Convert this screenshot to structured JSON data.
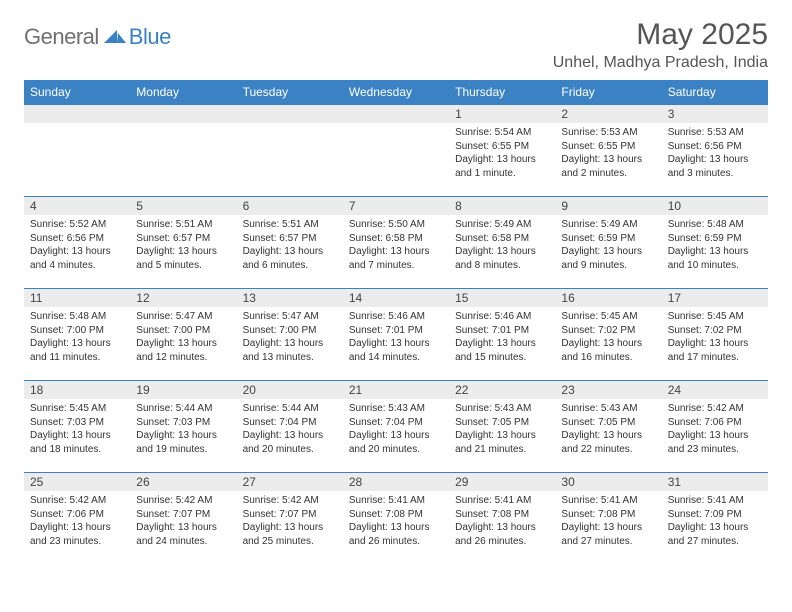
{
  "logo": {
    "general": "General",
    "blue": "Blue",
    "icon_color": "#3b82c4"
  },
  "title": "May 2025",
  "location": "Unhel, Madhya Pradesh, India",
  "colors": {
    "header_bg": "#3b82c4",
    "header_text": "#ffffff",
    "daynum_bg": "#ececec",
    "border": "#3b82c4",
    "text": "#333333"
  },
  "day_headers": [
    "Sunday",
    "Monday",
    "Tuesday",
    "Wednesday",
    "Thursday",
    "Friday",
    "Saturday"
  ],
  "weeks": [
    [
      {
        "n": "",
        "sr": "",
        "ss": "",
        "dl": ""
      },
      {
        "n": "",
        "sr": "",
        "ss": "",
        "dl": ""
      },
      {
        "n": "",
        "sr": "",
        "ss": "",
        "dl": ""
      },
      {
        "n": "",
        "sr": "",
        "ss": "",
        "dl": ""
      },
      {
        "n": "1",
        "sr": "Sunrise: 5:54 AM",
        "ss": "Sunset: 6:55 PM",
        "dl": "Daylight: 13 hours and 1 minute."
      },
      {
        "n": "2",
        "sr": "Sunrise: 5:53 AM",
        "ss": "Sunset: 6:55 PM",
        "dl": "Daylight: 13 hours and 2 minutes."
      },
      {
        "n": "3",
        "sr": "Sunrise: 5:53 AM",
        "ss": "Sunset: 6:56 PM",
        "dl": "Daylight: 13 hours and 3 minutes."
      }
    ],
    [
      {
        "n": "4",
        "sr": "Sunrise: 5:52 AM",
        "ss": "Sunset: 6:56 PM",
        "dl": "Daylight: 13 hours and 4 minutes."
      },
      {
        "n": "5",
        "sr": "Sunrise: 5:51 AM",
        "ss": "Sunset: 6:57 PM",
        "dl": "Daylight: 13 hours and 5 minutes."
      },
      {
        "n": "6",
        "sr": "Sunrise: 5:51 AM",
        "ss": "Sunset: 6:57 PM",
        "dl": "Daylight: 13 hours and 6 minutes."
      },
      {
        "n": "7",
        "sr": "Sunrise: 5:50 AM",
        "ss": "Sunset: 6:58 PM",
        "dl": "Daylight: 13 hours and 7 minutes."
      },
      {
        "n": "8",
        "sr": "Sunrise: 5:49 AM",
        "ss": "Sunset: 6:58 PM",
        "dl": "Daylight: 13 hours and 8 minutes."
      },
      {
        "n": "9",
        "sr": "Sunrise: 5:49 AM",
        "ss": "Sunset: 6:59 PM",
        "dl": "Daylight: 13 hours and 9 minutes."
      },
      {
        "n": "10",
        "sr": "Sunrise: 5:48 AM",
        "ss": "Sunset: 6:59 PM",
        "dl": "Daylight: 13 hours and 10 minutes."
      }
    ],
    [
      {
        "n": "11",
        "sr": "Sunrise: 5:48 AM",
        "ss": "Sunset: 7:00 PM",
        "dl": "Daylight: 13 hours and 11 minutes."
      },
      {
        "n": "12",
        "sr": "Sunrise: 5:47 AM",
        "ss": "Sunset: 7:00 PM",
        "dl": "Daylight: 13 hours and 12 minutes."
      },
      {
        "n": "13",
        "sr": "Sunrise: 5:47 AM",
        "ss": "Sunset: 7:00 PM",
        "dl": "Daylight: 13 hours and 13 minutes."
      },
      {
        "n": "14",
        "sr": "Sunrise: 5:46 AM",
        "ss": "Sunset: 7:01 PM",
        "dl": "Daylight: 13 hours and 14 minutes."
      },
      {
        "n": "15",
        "sr": "Sunrise: 5:46 AM",
        "ss": "Sunset: 7:01 PM",
        "dl": "Daylight: 13 hours and 15 minutes."
      },
      {
        "n": "16",
        "sr": "Sunrise: 5:45 AM",
        "ss": "Sunset: 7:02 PM",
        "dl": "Daylight: 13 hours and 16 minutes."
      },
      {
        "n": "17",
        "sr": "Sunrise: 5:45 AM",
        "ss": "Sunset: 7:02 PM",
        "dl": "Daylight: 13 hours and 17 minutes."
      }
    ],
    [
      {
        "n": "18",
        "sr": "Sunrise: 5:45 AM",
        "ss": "Sunset: 7:03 PM",
        "dl": "Daylight: 13 hours and 18 minutes."
      },
      {
        "n": "19",
        "sr": "Sunrise: 5:44 AM",
        "ss": "Sunset: 7:03 PM",
        "dl": "Daylight: 13 hours and 19 minutes."
      },
      {
        "n": "20",
        "sr": "Sunrise: 5:44 AM",
        "ss": "Sunset: 7:04 PM",
        "dl": "Daylight: 13 hours and 20 minutes."
      },
      {
        "n": "21",
        "sr": "Sunrise: 5:43 AM",
        "ss": "Sunset: 7:04 PM",
        "dl": "Daylight: 13 hours and 20 minutes."
      },
      {
        "n": "22",
        "sr": "Sunrise: 5:43 AM",
        "ss": "Sunset: 7:05 PM",
        "dl": "Daylight: 13 hours and 21 minutes."
      },
      {
        "n": "23",
        "sr": "Sunrise: 5:43 AM",
        "ss": "Sunset: 7:05 PM",
        "dl": "Daylight: 13 hours and 22 minutes."
      },
      {
        "n": "24",
        "sr": "Sunrise: 5:42 AM",
        "ss": "Sunset: 7:06 PM",
        "dl": "Daylight: 13 hours and 23 minutes."
      }
    ],
    [
      {
        "n": "25",
        "sr": "Sunrise: 5:42 AM",
        "ss": "Sunset: 7:06 PM",
        "dl": "Daylight: 13 hours and 23 minutes."
      },
      {
        "n": "26",
        "sr": "Sunrise: 5:42 AM",
        "ss": "Sunset: 7:07 PM",
        "dl": "Daylight: 13 hours and 24 minutes."
      },
      {
        "n": "27",
        "sr": "Sunrise: 5:42 AM",
        "ss": "Sunset: 7:07 PM",
        "dl": "Daylight: 13 hours and 25 minutes."
      },
      {
        "n": "28",
        "sr": "Sunrise: 5:41 AM",
        "ss": "Sunset: 7:08 PM",
        "dl": "Daylight: 13 hours and 26 minutes."
      },
      {
        "n": "29",
        "sr": "Sunrise: 5:41 AM",
        "ss": "Sunset: 7:08 PM",
        "dl": "Daylight: 13 hours and 26 minutes."
      },
      {
        "n": "30",
        "sr": "Sunrise: 5:41 AM",
        "ss": "Sunset: 7:08 PM",
        "dl": "Daylight: 13 hours and 27 minutes."
      },
      {
        "n": "31",
        "sr": "Sunrise: 5:41 AM",
        "ss": "Sunset: 7:09 PM",
        "dl": "Daylight: 13 hours and 27 minutes."
      }
    ]
  ]
}
